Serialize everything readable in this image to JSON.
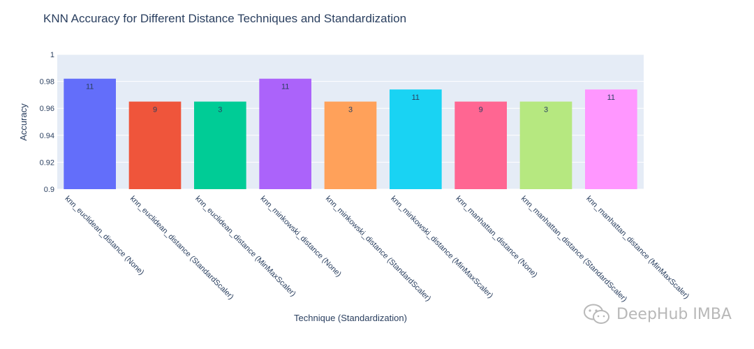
{
  "chart_data": {
    "type": "bar",
    "title": "KNN Accuracy for Different Distance Techniques and Standardization",
    "xlabel": "Technique (Standardization)",
    "ylabel": "Accuracy",
    "ylim": [
      0.9,
      1.0
    ],
    "yticks": [
      0.9,
      0.92,
      0.94,
      0.96,
      0.98,
      1
    ],
    "ytick_labels": [
      "0.9",
      "0.92",
      "0.94",
      "0.96",
      "0.98",
      "1"
    ],
    "grid": true,
    "categories": [
      "knn_euclidean_distance (None)",
      "knn_euclidean_distance (StandardScaler)",
      "knn_euclidean_distance (MinMaxScaler)",
      "knn_minkowski_distance (None)",
      "knn_minkowski_distance (StandardScaler)",
      "knn_minkowski_distance (MinMaxScaler)",
      "knn_manhattan_distance (None)",
      "knn_manhattan_distance (StandardScaler)",
      "knn_manhattan_distance (MinMaxScaler)"
    ],
    "values": [
      0.982,
      0.965,
      0.965,
      0.982,
      0.965,
      0.974,
      0.965,
      0.965,
      0.974
    ],
    "data_labels": [
      "11",
      "9",
      "3",
      "11",
      "3",
      "11",
      "9",
      "3",
      "11"
    ],
    "colors": [
      "#636efa",
      "#ef553b",
      "#00cc96",
      "#ab63fa",
      "#ffa15a",
      "#19d3f3",
      "#ff6692",
      "#b6e880",
      "#ff97ff"
    ]
  },
  "watermark": {
    "text": "DeepHub IMBA"
  }
}
